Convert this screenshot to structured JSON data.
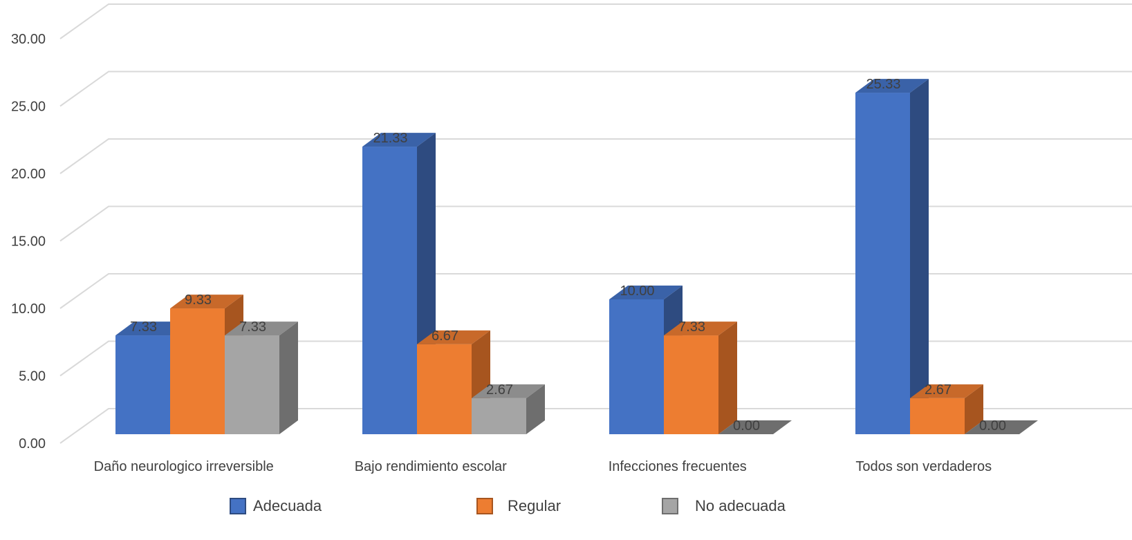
{
  "chart_data": {
    "type": "bar",
    "categories": [
      "Daño neurologico irreversible",
      "Bajo rendimiento escolar",
      "Infecciones frecuentes",
      "Todos son verdaderos"
    ],
    "series": [
      {
        "name": "Adecuada",
        "values": [
          7.33,
          21.33,
          10.0,
          25.33
        ],
        "color": "#4472c4",
        "side": "#2e4b80",
        "top": "#3a62a8"
      },
      {
        "name": "Regular",
        "values": [
          9.33,
          6.67,
          7.33,
          2.67
        ],
        "color": "#ed7d31",
        "side": "#a7551f",
        "top": "#c8692a"
      },
      {
        "name": "No adecuada",
        "values": [
          7.33,
          2.67,
          0.0,
          0.0
        ],
        "color": "#a5a5a5",
        "side": "#6e6e6e",
        "top": "#8c8c8c"
      }
    ],
    "data_labels": [
      [
        "7.33",
        "21.33",
        "10.00",
        "25.33"
      ],
      [
        "9.33",
        "6.67",
        "7.33",
        "2.67"
      ],
      [
        "7.33",
        "2.67",
        "0.00",
        "0.00"
      ]
    ],
    "y_ticks": [
      "0.00",
      "5.00",
      "10.00",
      "15.00",
      "20.00",
      "25.00",
      "30.00"
    ],
    "ylim": [
      0,
      30
    ],
    "grid": true,
    "legend_position": "bottom",
    "style": "3d-clustered-column"
  }
}
